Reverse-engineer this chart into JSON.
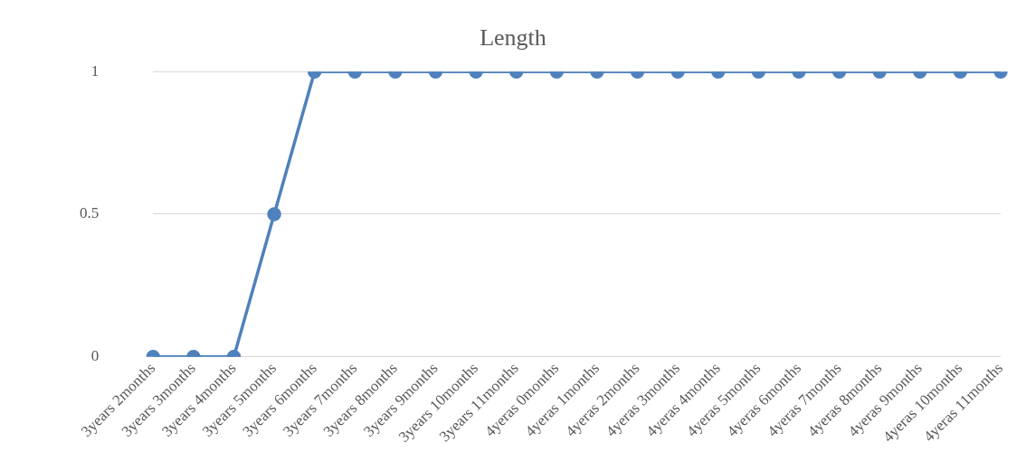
{
  "chart_data": {
    "type": "line",
    "title": "Length",
    "categories": [
      "3years 2months",
      "3years 3months",
      "3years 4months",
      "3years 5months",
      "3years 6months",
      "3years 7months",
      "3years 8months",
      "3years 9months",
      "3years 10months",
      "3years 11months",
      "4yeras 0months",
      "4yeras 1months",
      "4yeras 2months",
      "4yeras 3months",
      "4yeras 4months",
      "4yeras 5months",
      "4yeras 6months",
      "4yeras 7months",
      "4yeras 8months",
      "4yeras 9months",
      "4yeras 10months",
      "4yeras 11months"
    ],
    "series": [
      {
        "color": "#4f81bd",
        "values": [
          0,
          0,
          0,
          0.5,
          1,
          1,
          1,
          1,
          1,
          1,
          1,
          1,
          1,
          1,
          1,
          1,
          1,
          1,
          1,
          1,
          1,
          1
        ]
      }
    ],
    "ylim": [
      0,
      1
    ],
    "yticks": [
      0,
      0.5,
      1
    ],
    "grid": "y",
    "legend": false,
    "marker": "circle",
    "line_style": "solid"
  }
}
